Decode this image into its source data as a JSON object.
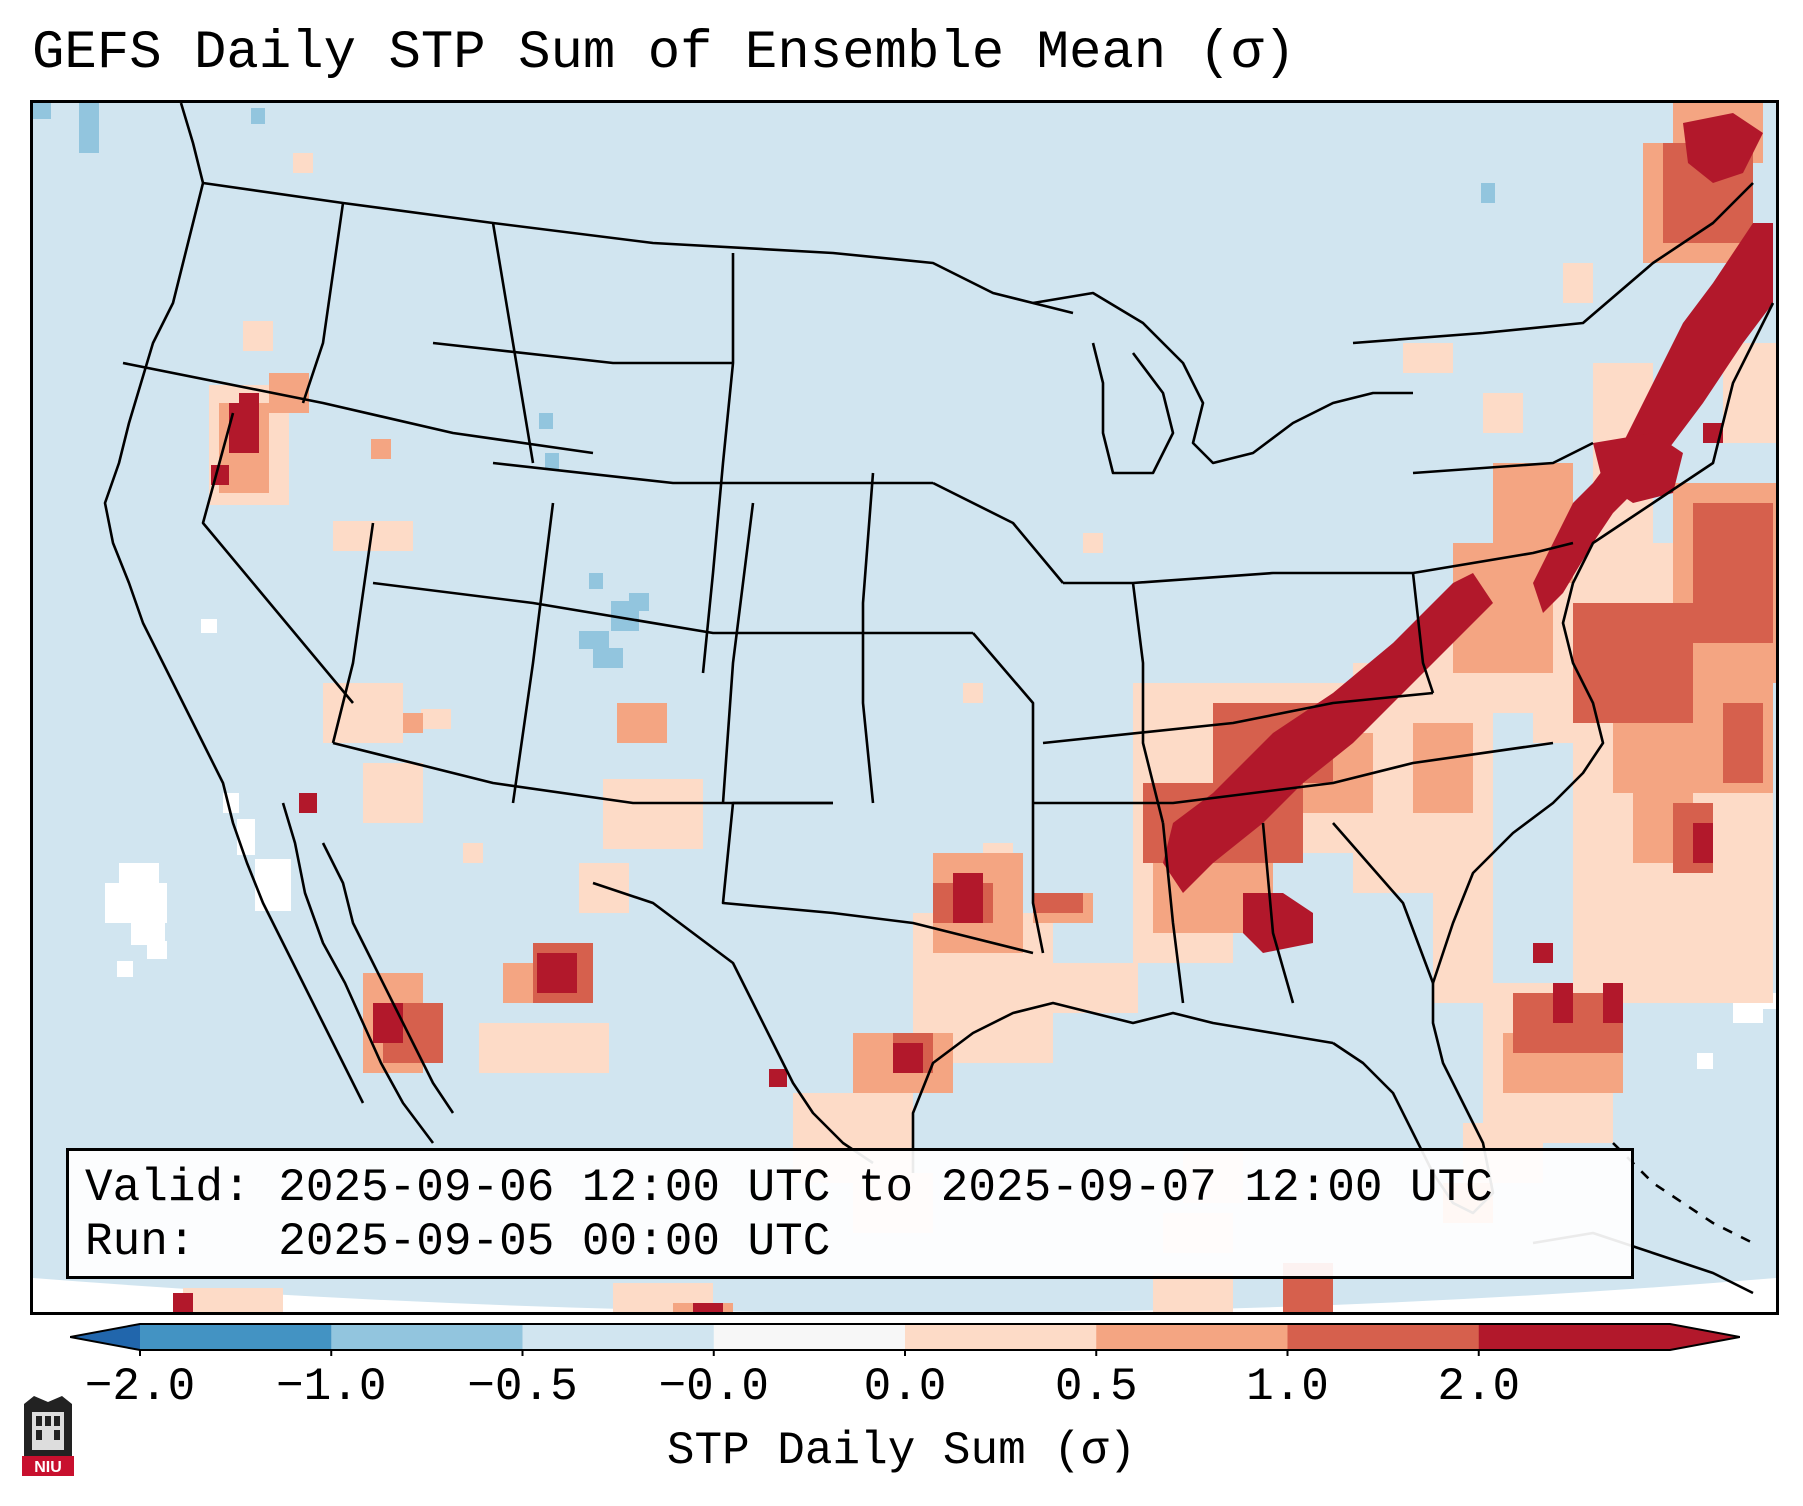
{
  "title": "GEFS Daily STP Sum of Ensemble Mean (σ)",
  "info": {
    "valid_label": "Valid:",
    "valid_value": "2025-09-06 12:00 UTC to 2025-09-07 12:00 UTC",
    "run_label": "Run:",
    "run_value": "2025-09-05 00:00 UTC"
  },
  "colorbar": {
    "label": "STP Daily Sum (σ)",
    "ticks": [
      "−2.0",
      "−1.0",
      "−0.5",
      "−0.0",
      "0.0",
      "0.5",
      "1.0",
      "2.0"
    ],
    "colors": [
      "#4393c3",
      "#92c5de",
      "#d1e5f0",
      "#f7f7f7",
      "#fddbc7",
      "#f4a582",
      "#d6604d",
      "#b2182b"
    ],
    "extend_low_color": "#2166ac",
    "extend_high_color": "#b2182b"
  },
  "map": {
    "background_color": "#d1e5f0",
    "outside_color": "#ffffff",
    "line_color": "#000000",
    "legend_colors": {
      "light_pos": "#fddbc7",
      "mid_pos": "#f4a582",
      "high_pos": "#d6604d",
      "max_pos": "#b2182b",
      "light_neg": "#92c5de",
      "neutral": "#ffffff"
    }
  },
  "logo": {
    "text": "NIU"
  }
}
